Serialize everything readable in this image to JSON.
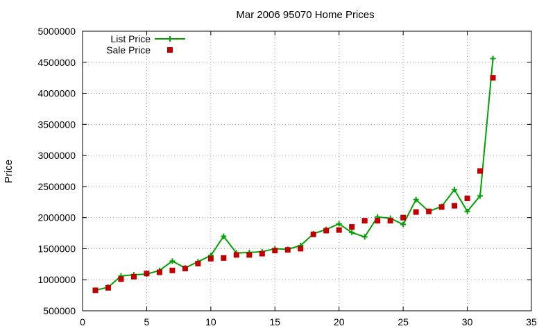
{
  "chart_data": {
    "type": "line",
    "title": "Mar 2006 95070 Home Prices",
    "xlabel": "",
    "ylabel": "Price",
    "xlim": [
      0,
      35
    ],
    "ylim": [
      500000,
      5000000
    ],
    "x_ticks": [
      0,
      5,
      10,
      15,
      20,
      25,
      30,
      35
    ],
    "x_tick_labels": [
      "0",
      "5",
      "10",
      "15",
      "20",
      "25",
      "30",
      "35"
    ],
    "y_ticks": [
      500000,
      1000000,
      1500000,
      2000000,
      2500000,
      3000000,
      3500000,
      4000000,
      4500000,
      5000000
    ],
    "y_tick_labels": [
      "500000",
      "1000000",
      "1500000",
      "2000000",
      "2500000",
      "3000000",
      "3500000",
      "4000000",
      "4500000",
      "5000000"
    ],
    "grid": true,
    "legend_position": "top-left",
    "series": [
      {
        "name": "List Price",
        "style": "linespoints",
        "marker": "plus",
        "color": "#00a000",
        "x": [
          1,
          2,
          3,
          4,
          5,
          6,
          7,
          8,
          9,
          10,
          11,
          12,
          13,
          14,
          15,
          16,
          17,
          18,
          19,
          20,
          21,
          22,
          23,
          24,
          25,
          26,
          27,
          28,
          29,
          30,
          31,
          32
        ],
        "values": [
          830000,
          880000,
          1060000,
          1080000,
          1090000,
          1150000,
          1300000,
          1190000,
          1290000,
          1390000,
          1700000,
          1430000,
          1440000,
          1450000,
          1500000,
          1490000,
          1550000,
          1740000,
          1810000,
          1900000,
          1760000,
          1690000,
          2010000,
          1990000,
          1890000,
          2290000,
          2100000,
          2180000,
          2450000,
          2100000,
          2350000,
          4560000
        ]
      },
      {
        "name": "Sale Price",
        "style": "points",
        "marker": "square",
        "color": "#c00000",
        "x": [
          1,
          2,
          3,
          4,
          5,
          6,
          7,
          8,
          9,
          10,
          11,
          12,
          13,
          14,
          15,
          16,
          17,
          18,
          19,
          20,
          21,
          22,
          23,
          24,
          25,
          26,
          27,
          28,
          29,
          30,
          31,
          32
        ],
        "values": [
          830000,
          870000,
          1010000,
          1050000,
          1100000,
          1120000,
          1150000,
          1180000,
          1260000,
          1340000,
          1350000,
          1400000,
          1400000,
          1420000,
          1470000,
          1480000,
          1500000,
          1730000,
          1790000,
          1800000,
          1850000,
          1950000,
          1950000,
          1950000,
          2000000,
          2090000,
          2100000,
          2170000,
          2190000,
          2310000,
          2750000,
          4250000
        ]
      }
    ]
  }
}
